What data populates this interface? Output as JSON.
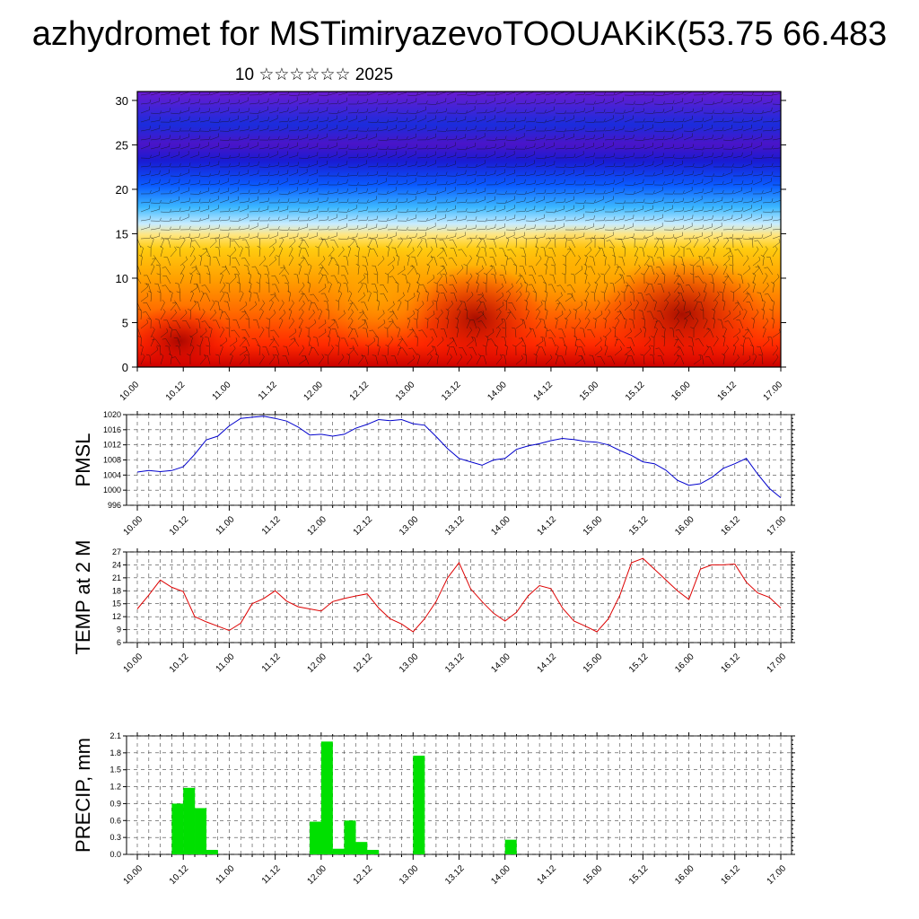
{
  "title": "azhydromet for MSTimiryazevoTOOUAKiK(53.75 66.483",
  "subtitle": "10 ☆☆☆☆☆☆ 2025",
  "chart_data": [
    {
      "type": "heatmap",
      "name": "upper-panel",
      "x_ticks": [
        "10.00",
        "10.12",
        "11.00",
        "11.12",
        "12.00",
        "12.12",
        "13.00",
        "13.12",
        "14.00",
        "14.12",
        "15.00",
        "15.12",
        "16.00",
        "16.12",
        "17.00"
      ],
      "y_ticks": [
        0,
        5,
        10,
        15,
        20,
        25,
        30
      ],
      "ylim": [
        0,
        31
      ],
      "colormap": [
        "#b40000",
        "#e60000",
        "#ff3c00",
        "#ff7800",
        "#ffaa00",
        "#ffd21e",
        "#c8f0ff",
        "#28b4ff",
        "#0a46ff",
        "#1414d2",
        "#3c14c8",
        "#7a14c8"
      ],
      "overlay": "wind barbs"
    },
    {
      "type": "line",
      "ylabel": "PMSL",
      "ylim": [
        996,
        1020
      ],
      "y_ticks": [
        996,
        1000,
        1004,
        1008,
        1012,
        1016,
        1020
      ],
      "x_ticks": [
        "10.00",
        "10.12",
        "11.00",
        "11.12",
        "12.00",
        "12.12",
        "13.00",
        "13.12",
        "14.00",
        "14.12",
        "15.00",
        "15.12",
        "16.00",
        "16.12",
        "17.00"
      ],
      "color": "#0000cc",
      "values": [
        1004.8,
        1005.2,
        1004.9,
        1005.2,
        1006.2,
        1009.5,
        1013.3,
        1014.3,
        1017.0,
        1019.0,
        1019.3,
        1019.6,
        1019.0,
        1018.3,
        1016.7,
        1014.6,
        1014.8,
        1014.3,
        1014.8,
        1016.4,
        1017.4,
        1018.7,
        1018.4,
        1018.7,
        1017.6,
        1017.2,
        1014.2,
        1011.0,
        1008.4,
        1007.5,
        1006.6,
        1008.0,
        1008.4,
        1010.8,
        1011.7,
        1012.3,
        1013.1,
        1013.7,
        1013.4,
        1012.9,
        1012.7,
        1012.0,
        1010.5,
        1009.2,
        1007.5,
        1007.0,
        1005.3,
        1002.6,
        1001.3,
        1001.7,
        1003.4,
        1005.8,
        1007.0,
        1008.4,
        1004.2,
        1000.5,
        998.0
      ]
    },
    {
      "type": "line",
      "ylabel": "TEMP at 2 M",
      "ylim": [
        6,
        27
      ],
      "y_ticks": [
        6,
        9,
        12,
        15,
        18,
        21,
        24,
        27
      ],
      "x_ticks": [
        "10.00",
        "10.12",
        "11.00",
        "11.12",
        "12.00",
        "12.12",
        "13.00",
        "13.12",
        "14.00",
        "14.12",
        "15.00",
        "15.12",
        "16.00",
        "16.12",
        "17.00"
      ],
      "color": "#dd0000",
      "values": [
        13.8,
        17.0,
        20.5,
        18.8,
        17.8,
        12.0,
        10.8,
        9.8,
        8.8,
        10.5,
        15.0,
        16.2,
        18.0,
        15.6,
        14.3,
        13.8,
        13.3,
        15.5,
        16.2,
        16.8,
        17.3,
        14.0,
        11.5,
        10.3,
        8.5,
        11.5,
        15.5,
        21.0,
        24.5,
        18.5,
        15.5,
        12.8,
        11.0,
        13.0,
        16.8,
        19.2,
        18.5,
        14.0,
        11.0,
        9.8,
        8.5,
        11.5,
        17.0,
        24.5,
        25.5,
        23.0,
        20.5,
        18.0,
        16.0,
        23.0,
        24.0,
        24.0,
        24.2,
        20.0,
        17.5,
        16.5,
        14.0
      ]
    },
    {
      "type": "bar",
      "ylabel": "PRECIP, mm",
      "ylim": [
        0,
        2.1
      ],
      "y_ticks": [
        "0.0",
        "0.3",
        "0.6",
        "0.9",
        "1.2",
        "1.5",
        "1.8",
        "2.1"
      ],
      "x_ticks": [
        "10.00",
        "10.12",
        "11.00",
        "11.12",
        "12.00",
        "12.12",
        "13.00",
        "13.12",
        "14.00",
        "14.12",
        "15.00",
        "15.12",
        "16.00",
        "16.12",
        "17.00"
      ],
      "color": "#00e000",
      "values": [
        0,
        0,
        0,
        0.9,
        1.18,
        0.82,
        0.08,
        0,
        0,
        0,
        0,
        0,
        0,
        0,
        0,
        0.58,
        2.0,
        0.1,
        0.6,
        0.22,
        0.08,
        0,
        0,
        0,
        1.75,
        0,
        0,
        0,
        0,
        0,
        0,
        0,
        0.26,
        0,
        0,
        0,
        0,
        0,
        0,
        0,
        0,
        0,
        0,
        0,
        0,
        0,
        0,
        0,
        0,
        0,
        0,
        0,
        0,
        0,
        0,
        0
      ]
    }
  ]
}
